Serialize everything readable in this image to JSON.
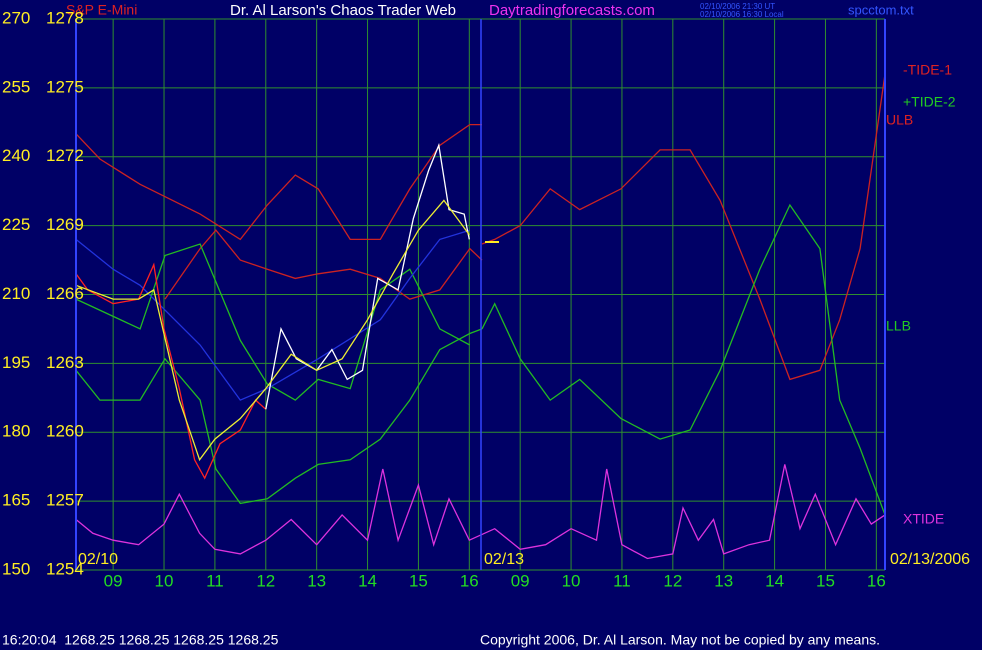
{
  "chart_data": {
    "type": "line",
    "subtitle": "S&P E-Mini",
    "title": "Dr. Al Larson's Chaos Trader Web",
    "website": "Daytradingforecasts.com",
    "timestamps": [
      "02/10/2006 21:30 UT",
      "02/10/2006 16:30 Local"
    ],
    "file": "spcctom.txt",
    "date_labels": [
      "02/10",
      "02/13",
      "02/13/2006"
    ],
    "series_labels": [
      "-TIDE-1",
      "+TIDE-2",
      "ULB",
      "LLB",
      "XTIDE"
    ],
    "status": "16:20:04  1268.25 1268.25 1268.25 1268.25",
    "copyright": "Copyright 2006, Dr. Al Larson. May not be copied by any means.",
    "grid": true,
    "xlim": [
      0.27,
      16.17
    ],
    "xticks": [
      {
        "value": 1,
        "label": "09"
      },
      {
        "value": 2,
        "label": "10"
      },
      {
        "value": 3,
        "label": "11"
      },
      {
        "value": 4,
        "label": "12"
      },
      {
        "value": 5,
        "label": "13"
      },
      {
        "value": 6,
        "label": "14"
      },
      {
        "value": 7,
        "label": "15"
      },
      {
        "value": 8,
        "label": "16"
      },
      {
        "value": 9,
        "label": "09"
      },
      {
        "value": 10,
        "label": "10"
      },
      {
        "value": 11,
        "label": "11"
      },
      {
        "value": 12,
        "label": "12"
      },
      {
        "value": 13,
        "label": "13"
      },
      {
        "value": 14,
        "label": "14"
      },
      {
        "value": 15,
        "label": "15"
      },
      {
        "value": 16,
        "label": "16"
      }
    ],
    "ylim": [
      1254,
      1278
    ],
    "yticks": [
      1254,
      1257,
      1260,
      1263,
      1266,
      1269,
      1272,
      1275,
      1278
    ],
    "y2lim": [
      150,
      270
    ],
    "y2ticks": [
      150,
      165,
      180,
      195,
      210,
      225,
      240,
      255,
      270
    ],
    "series": [
      {
        "color": "#cc2222",
        "x": [
          0.27,
          0.74,
          1.53,
          2.71,
          3.5,
          4.03,
          4.58,
          5.03,
          5.66,
          6.25,
          6.83,
          7.42,
          8.01,
          8.25
        ],
        "values": [
          1273.0,
          1271.9,
          1270.8,
          1269.5,
          1268.4,
          1269.9,
          1271.2,
          1270.6,
          1268.4,
          1268.4,
          1270.6,
          1272.5,
          1273.4,
          1273.4
        ]
      },
      {
        "color": "#cc2222",
        "x": [
          8.25,
          8.5,
          9.0,
          9.59,
          10.17,
          10.98,
          11.75,
          12.34,
          12.93,
          13.71,
          14.3,
          14.89,
          15.28,
          15.68,
          16.17
        ],
        "values": [
          1268.2,
          1268.4,
          1269.0,
          1270.6,
          1269.7,
          1270.6,
          1272.3,
          1272.3,
          1270.1,
          1265.8,
          1262.3,
          1262.7,
          1264.9,
          1268.0,
          1275.6
        ]
      },
      {
        "color": "#cc2222",
        "x": [
          2.02,
          2.71,
          3.02,
          3.5,
          4.03,
          4.58,
          5.03,
          5.66,
          6.25,
          6.83,
          7.42,
          8.01,
          8.25
        ],
        "values": [
          1265.8,
          1268.0,
          1268.8,
          1267.5,
          1267.1,
          1266.7,
          1266.9,
          1267.1,
          1266.7,
          1265.8,
          1266.2,
          1268.0,
          1267.5
        ]
      },
      {
        "color": "#22bb22",
        "x": [
          0.27,
          0.74,
          1.53,
          2.02,
          2.71,
          3.02,
          3.5,
          4.03,
          4.58,
          5.03,
          5.66,
          6.25,
          6.83,
          7.42,
          8.01,
          8.25
        ],
        "values": [
          1262.7,
          1261.4,
          1261.4,
          1263.2,
          1261.4,
          1258.4,
          1256.9,
          1257.1,
          1258.0,
          1258.6,
          1258.8,
          1259.7,
          1261.4,
          1263.6,
          1264.3,
          1264.5
        ]
      },
      {
        "color": "#22bb22",
        "x": [
          8.25,
          8.5,
          9.0,
          9.59,
          10.17,
          10.98,
          11.75,
          12.34,
          12.93,
          13.71,
          14.3,
          14.89,
          15.28,
          15.68,
          16.17
        ],
        "values": [
          1264.5,
          1265.6,
          1263.2,
          1261.4,
          1262.3,
          1260.6,
          1259.7,
          1260.1,
          1262.7,
          1267.1,
          1269.9,
          1268.0,
          1261.4,
          1259.3,
          1256.4
        ]
      },
      {
        "color": "#22bb22",
        "x": [
          0.27,
          1.53,
          2.02,
          2.71,
          3.5,
          4.03,
          4.58,
          5.03,
          5.66,
          6.25,
          6.83,
          7.42,
          8.01
        ],
        "values": [
          1265.8,
          1264.5,
          1267.7,
          1268.2,
          1264.0,
          1262.1,
          1261.4,
          1262.3,
          1261.9,
          1266.2,
          1267.1,
          1264.5,
          1263.8
        ]
      },
      {
        "color": "#2233dd",
        "x": [
          0.27,
          1.0,
          1.53,
          2.71,
          3.5,
          4.03,
          5.03,
          6.25,
          6.83,
          7.42,
          8.01
        ],
        "values": [
          1268.4,
          1267.1,
          1266.4,
          1263.8,
          1261.4,
          1261.9,
          1263.2,
          1264.9,
          1266.7,
          1268.4,
          1268.8
        ]
      },
      {
        "color": "#ff2222",
        "x": [
          0.27,
          0.5,
          1.0,
          1.5,
          1.8,
          2.0,
          2.3,
          2.6,
          2.8,
          3.1,
          3.5,
          3.8,
          4.0
        ],
        "values": [
          1266.9,
          1266.2,
          1265.6,
          1265.8,
          1267.3,
          1264.5,
          1261.9,
          1258.8,
          1258.0,
          1259.5,
          1260.1,
          1261.4,
          1261.0
        ]
      },
      {
        "color": "#ffffff",
        "x": [
          4.0,
          4.3,
          4.6,
          5.0,
          5.3,
          5.6,
          5.9,
          6.2,
          6.6,
          6.9,
          7.2,
          7.4,
          7.6,
          7.9,
          8.0
        ],
        "values": [
          1261.0,
          1264.5,
          1263.2,
          1262.7,
          1263.6,
          1262.3,
          1262.7,
          1266.7,
          1266.2,
          1269.3,
          1271.4,
          1272.5,
          1269.7,
          1269.5,
          1268.4
        ]
      },
      {
        "color": "#eeee33",
        "x": [
          0.27,
          1.0,
          1.5,
          1.8,
          2.3,
          2.7,
          3.0,
          3.5,
          4.0,
          4.5,
          5.0,
          5.5,
          6.0,
          6.5,
          7.0,
          7.5,
          8.0
        ],
        "values": [
          1266.4,
          1265.8,
          1265.8,
          1266.2,
          1261.4,
          1258.8,
          1259.7,
          1260.6,
          1261.9,
          1263.4,
          1262.7,
          1263.2,
          1264.9,
          1266.9,
          1268.8,
          1270.1,
          1268.6
        ]
      },
      {
        "color": "#dd33dd",
        "x": [
          0.27,
          0.6,
          1.0,
          1.5,
          2.0,
          2.3,
          2.7,
          3.0,
          3.5,
          4.0,
          4.5,
          5.0,
          5.5,
          6.0,
          6.3,
          6.6,
          7.0,
          7.3,
          7.6,
          8.0,
          8.5,
          9.0,
          9.5,
          10.0,
          10.5,
          10.7,
          11.0,
          11.5,
          12.0,
          12.2,
          12.5,
          12.8,
          13.0,
          13.5,
          13.9,
          14.2,
          14.5,
          14.8,
          15.2,
          15.6,
          15.9,
          16.17
        ],
        "values": [
          1256.2,
          1255.6,
          1255.3,
          1255.1,
          1256.0,
          1257.3,
          1255.6,
          1254.9,
          1254.7,
          1255.3,
          1256.2,
          1255.1,
          1256.4,
          1255.3,
          1258.4,
          1255.3,
          1257.7,
          1255.1,
          1257.1,
          1255.3,
          1255.8,
          1254.9,
          1255.1,
          1255.8,
          1255.3,
          1258.4,
          1255.1,
          1254.5,
          1254.7,
          1256.7,
          1255.3,
          1256.2,
          1254.7,
          1255.1,
          1255.3,
          1258.6,
          1255.8,
          1257.3,
          1255.1,
          1257.1,
          1256.0,
          1256.4
        ]
      }
    ]
  }
}
